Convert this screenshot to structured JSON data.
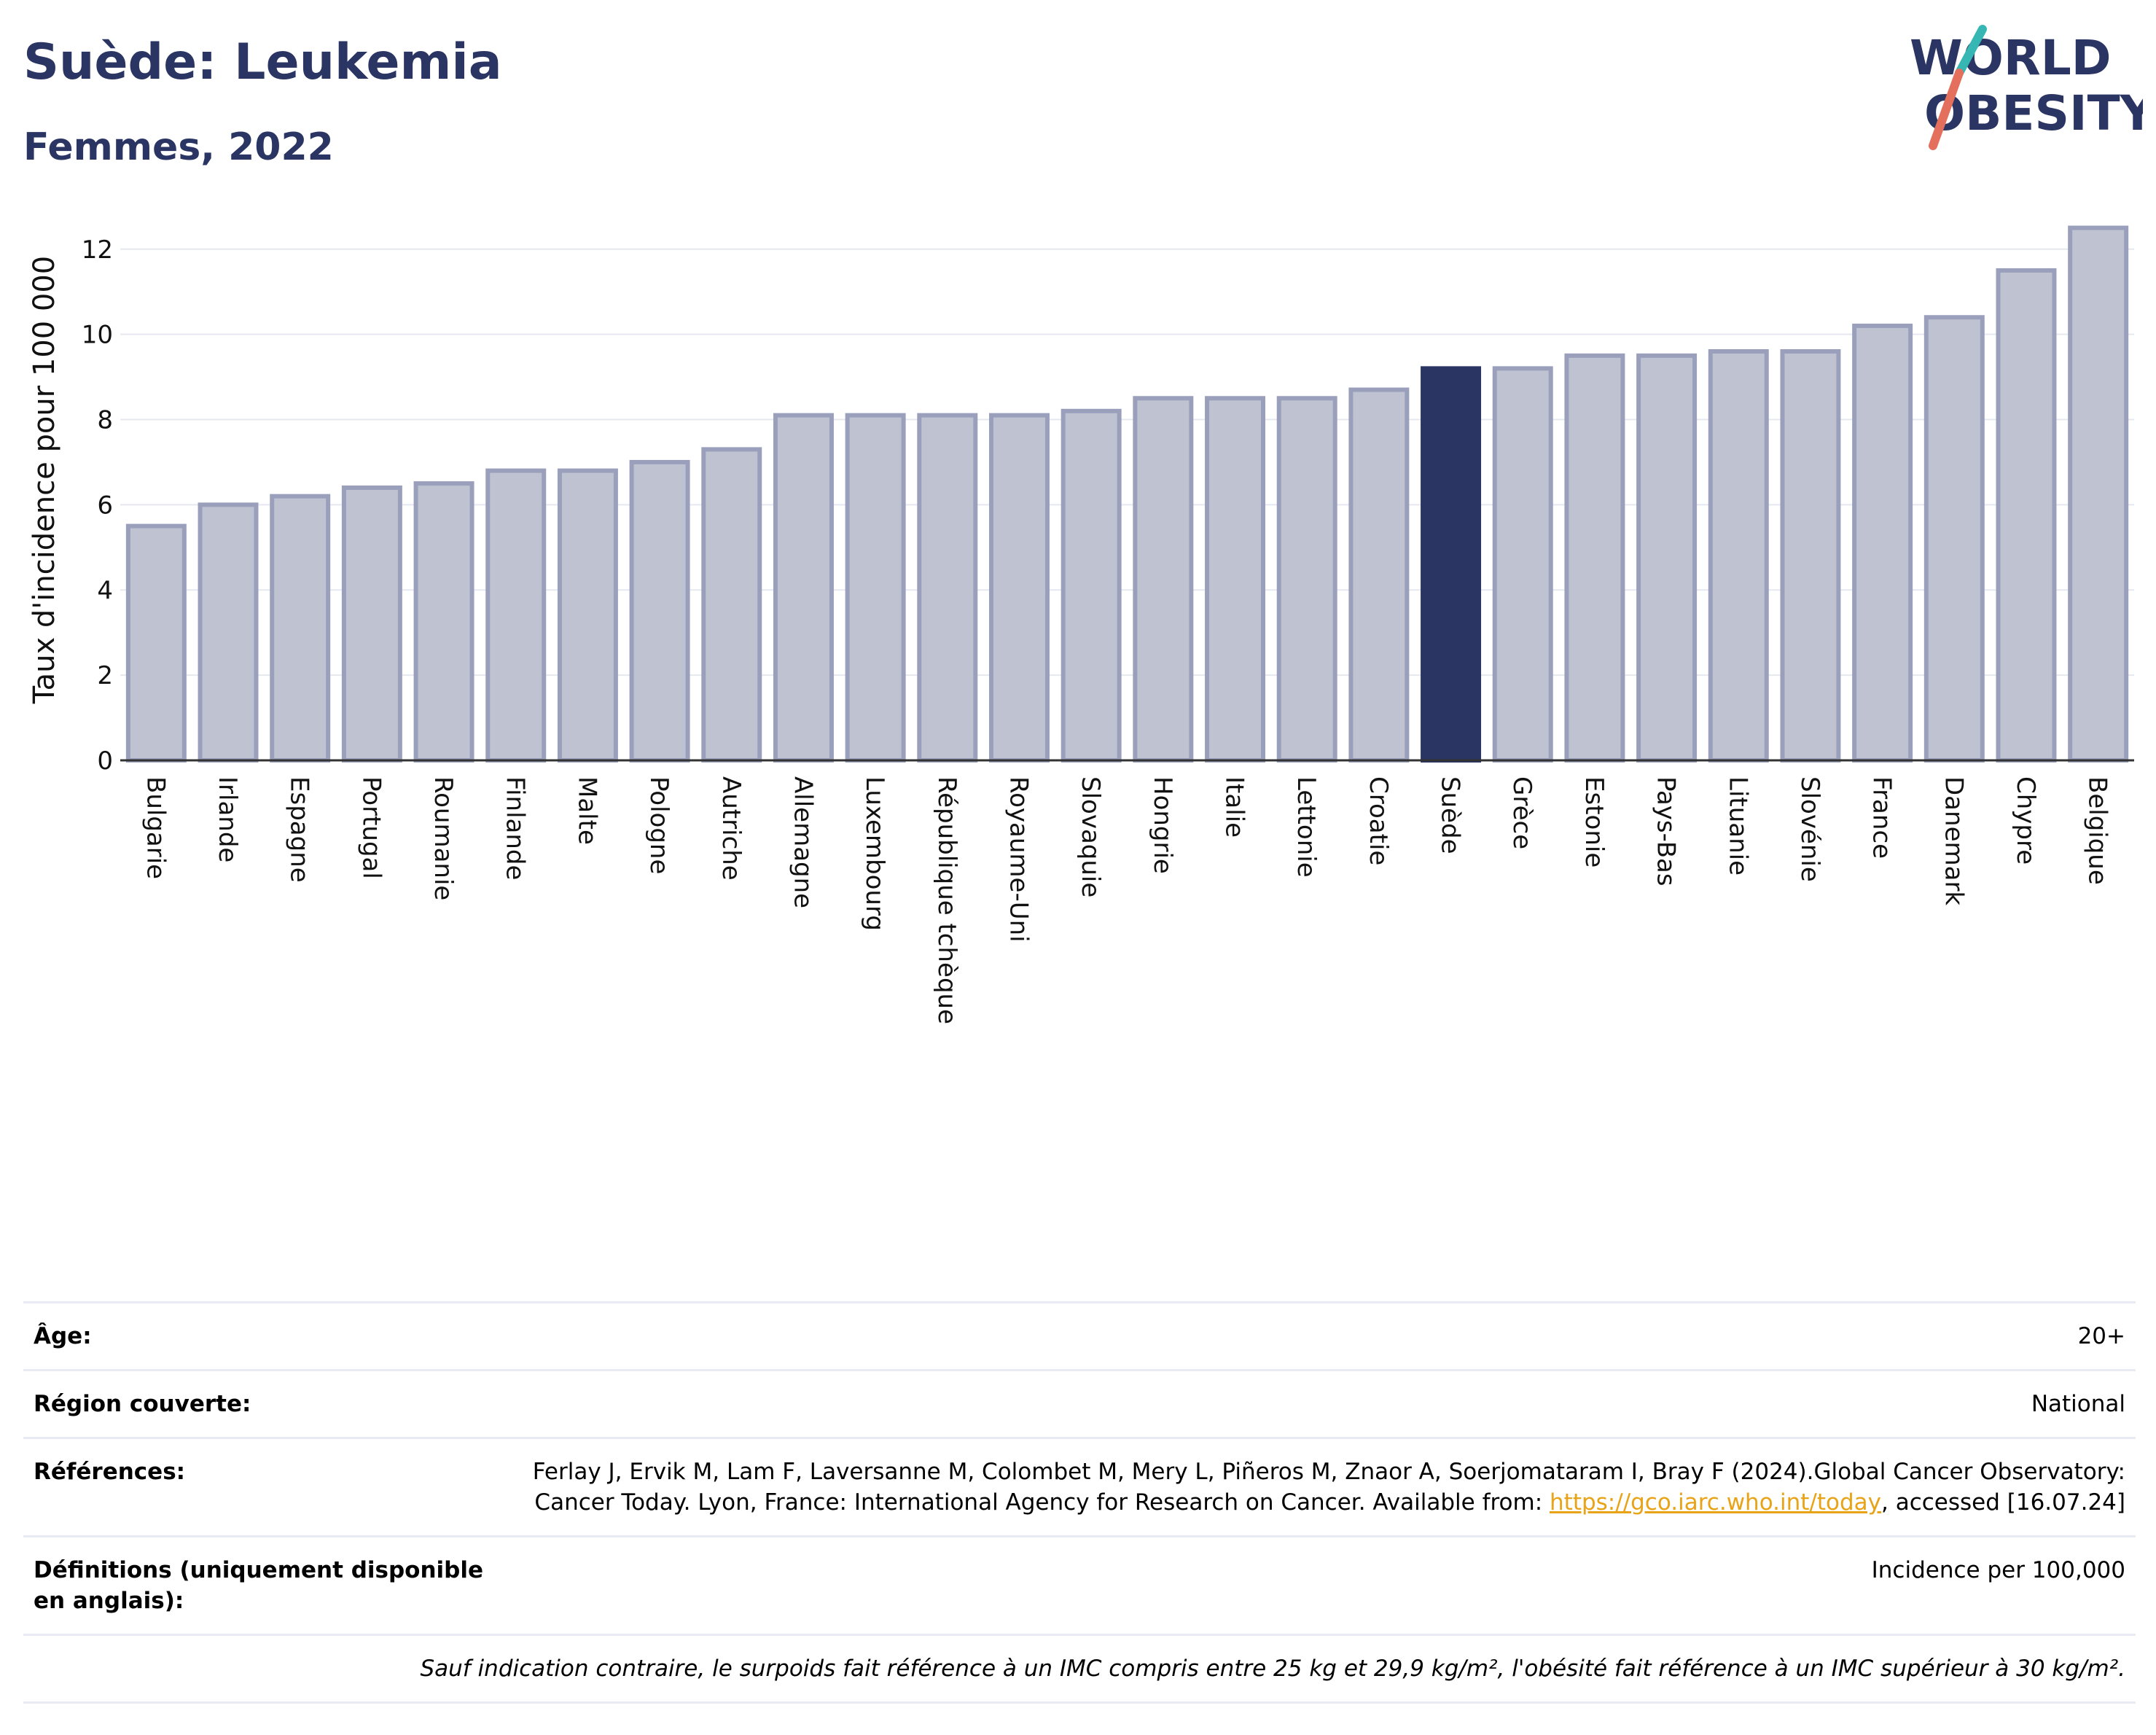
{
  "header": {
    "title": "Suède: Leukemia",
    "subtitle": "Femmes, 2022",
    "logo_line1": "WORLD",
    "logo_line2": "OBESITY"
  },
  "chart_data": {
    "type": "bar",
    "ylabel": "Taux d'incidence pour 100 000",
    "ylim": [
      0,
      12.8
    ],
    "yticks": [
      0,
      2,
      4,
      6,
      8,
      10,
      12
    ],
    "grid": true,
    "highlight": "Suède",
    "colors": {
      "bar": "#bfc3d1",
      "bar_border": "#9aa0bb",
      "highlight": "#2b3563"
    },
    "categories": [
      "Bulgarie",
      "Irlande",
      "Espagne",
      "Portugal",
      "Roumanie",
      "Finlande",
      "Malte",
      "Pologne",
      "Autriche",
      "Allemagne",
      "Luxembourg",
      "République tchèque",
      "Royaume-Uni",
      "Slovaquie",
      "Hongrie",
      "Italie",
      "Lettonie",
      "Croatie",
      "Suède",
      "Grèce",
      "Estonie",
      "Pays-Bas",
      "Lituanie",
      "Slovénie",
      "France",
      "Danemark",
      "Chypre",
      "Belgique"
    ],
    "values": [
      5.5,
      6.0,
      6.2,
      6.4,
      6.5,
      6.8,
      6.8,
      7.0,
      7.3,
      8.1,
      8.1,
      8.1,
      8.1,
      8.2,
      8.5,
      8.5,
      8.5,
      8.7,
      9.2,
      9.2,
      9.5,
      9.5,
      9.6,
      9.6,
      10.2,
      10.4,
      11.5,
      12.5
    ]
  },
  "meta": {
    "age_label": "Âge:",
    "age_value": "20+",
    "region_label": "Région couverte:",
    "region_value": "National",
    "refs_label": "Références:",
    "refs_text": "Ferlay J, Ervik M, Lam F, Laversanne M, Colombet M, Mery L, Piñeros M, Znaor A, Soerjomataram I, Bray F (2024).Global Cancer Observatory: Cancer Today. Lyon, France: International Agency for Research on Cancer. Available from: ",
    "refs_link": "https://gco.iarc.who.int/today",
    "refs_tail": ", accessed [16.07.24]",
    "defs_label": "Définitions (uniquement disponible en anglais):",
    "defs_value": "Incidence per 100,000",
    "footnote": "Sauf indication contraire, le surpoids fait référence à un IMC compris entre 25 kg et 29,9 kg/m², l'obésité fait référence à un IMC supérieur à 30 kg/m²."
  }
}
